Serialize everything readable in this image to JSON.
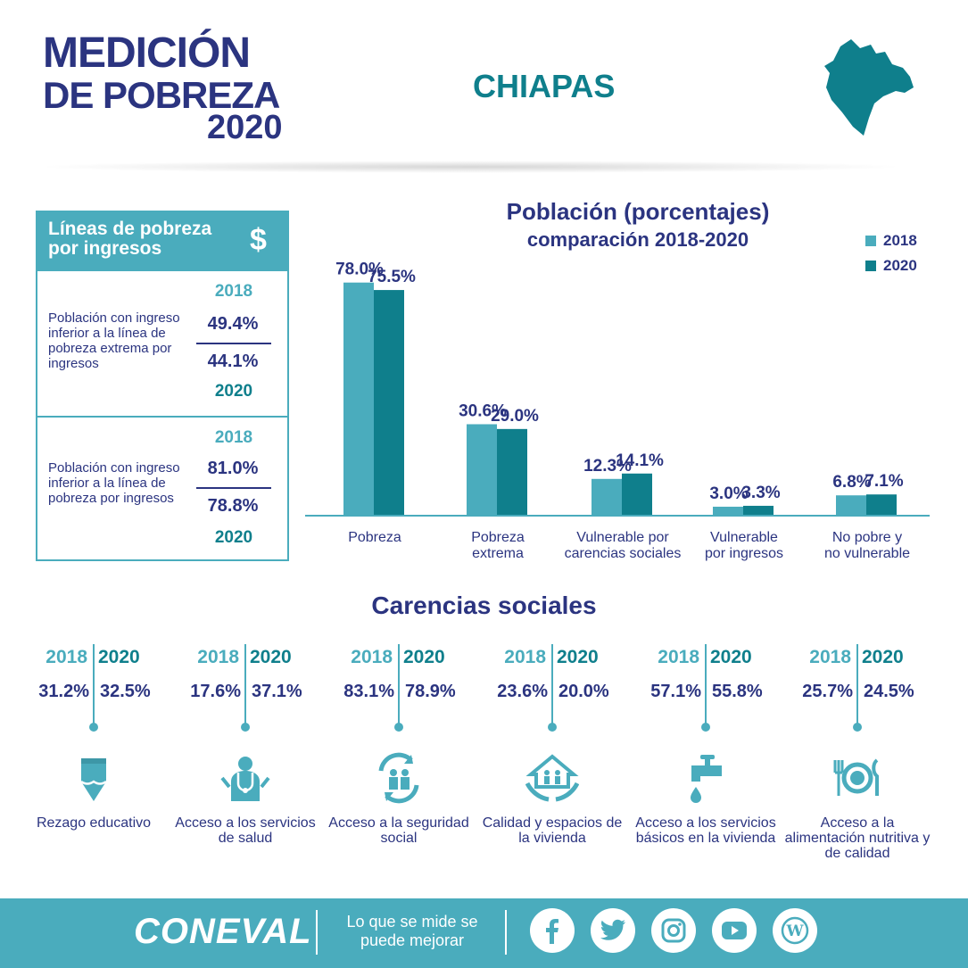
{
  "header": {
    "title_line1": "MEDICIÓN",
    "title_line2": "DE POBREZA",
    "title_year": "2020",
    "state": "CHIAPAS"
  },
  "income_lines": {
    "title": "Líneas de pobreza por ingresos",
    "icon": "dollar-icon",
    "rows": [
      {
        "desc": "Población con ingreso inferior a la línea de pobreza extrema por ingresos",
        "year_a": "2018",
        "val_a": "49.4%",
        "val_b": "44.1%",
        "year_b": "2020"
      },
      {
        "desc": "Población con ingreso inferior a la línea de pobreza por ingresos",
        "year_a": "2018",
        "val_a": "81.0%",
        "val_b": "78.8%",
        "year_b": "2020"
      }
    ]
  },
  "chart_data": {
    "type": "bar",
    "title": "Población (porcentajes)",
    "subtitle": "comparación 2018-2020",
    "categories": [
      "Pobreza",
      "Pobreza extrema",
      "Vulnerable por carencias sociales",
      "Vulnerable por ingresos",
      "No pobre y no vulnerable"
    ],
    "category_lines": [
      [
        "Pobreza"
      ],
      [
        "Pobreza",
        "extrema"
      ],
      [
        "Vulnerable por",
        "carencias sociales"
      ],
      [
        "Vulnerable",
        "por ingresos"
      ],
      [
        "No pobre y",
        "no vulnerable"
      ]
    ],
    "series": [
      {
        "name": "2018",
        "values": [
          78.0,
          30.6,
          12.3,
          3.0,
          6.8
        ],
        "labels": [
          "78.0%",
          "30.6%",
          "12.3%",
          "3.0%",
          "6.8%"
        ],
        "color": "#4aacbd"
      },
      {
        "name": "2020",
        "values": [
          75.5,
          29.0,
          14.1,
          3.3,
          7.1
        ],
        "labels": [
          "75.5%",
          "29.0%",
          "14.1%",
          "3.3%",
          "7.1%"
        ],
        "color": "#0f7f8c"
      }
    ],
    "legend_position": "top-right"
  },
  "carencias": {
    "title": "Carencias sociales",
    "year_a": "2018",
    "year_b": "2020",
    "items": [
      {
        "v18": "31.2%",
        "v20": "32.5%",
        "label": "Rezago educativo",
        "icon": "pencil-icon"
      },
      {
        "v18": "17.6%",
        "v20": "37.1%",
        "label": "Acceso a los servicios de salud",
        "icon": "doctor-icon"
      },
      {
        "v18": "83.1%",
        "v20": "78.9%",
        "label": "Acceso a la seguridad social",
        "icon": "social-security-icon"
      },
      {
        "v18": "23.6%",
        "v20": "20.0%",
        "label": "Calidad y espacios de la vivienda",
        "icon": "house-hands-icon"
      },
      {
        "v18": "57.1%",
        "v20": "55.8%",
        "label": "Acceso a los servicios básicos en la vivienda",
        "icon": "faucet-icon"
      },
      {
        "v18": "25.7%",
        "v20": "24.5%",
        "label": "Acceso a la alimentación nutritiva y de calidad",
        "icon": "plate-icon"
      }
    ]
  },
  "footer": {
    "brand": "CONEVAL",
    "slogan": "Lo que se mide se puede mejorar",
    "social": [
      "facebook-icon",
      "twitter-icon",
      "instagram-icon",
      "youtube-icon",
      "wordpress-icon"
    ]
  },
  "colors": {
    "navy": "#2b3480",
    "light": "#4aacbd",
    "teal": "#0f7f8c"
  }
}
